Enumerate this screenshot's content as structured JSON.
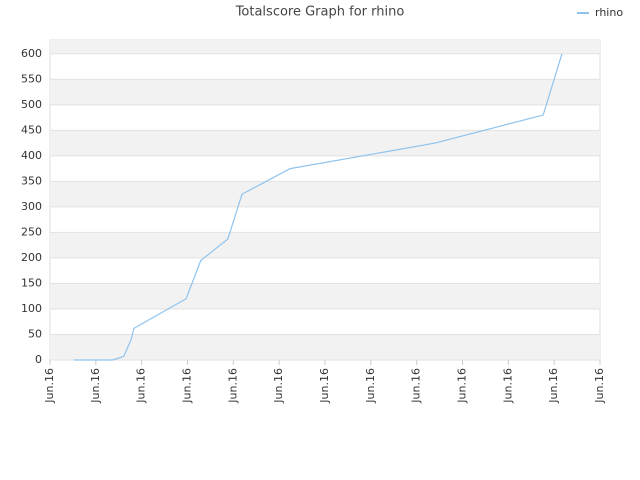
{
  "chart_data": {
    "type": "line",
    "title": "Totalscore Graph for rhino",
    "x": [
      0.52,
      1.37,
      1.61,
      1.77,
      1.83,
      2.97,
      3.29,
      3.88,
      4.19,
      5.24,
      8.4,
      10.76,
      11.17
    ],
    "series": [
      {
        "name": "rhino",
        "color": "#8ec3ee",
        "values": [
          0,
          0,
          7,
          40,
          62,
          120,
          195,
          237,
          325,
          375,
          425,
          480,
          600
        ]
      }
    ],
    "xlim": [
      0,
      12
    ],
    "xticks": [
      {
        "value": 0,
        "label": "Jun.16"
      },
      {
        "value": 1,
        "label": "Jun.16"
      },
      {
        "value": 2,
        "label": "Jun.16"
      },
      {
        "value": 3,
        "label": "Jun.16"
      },
      {
        "value": 4,
        "label": "Jun.16"
      },
      {
        "value": 5,
        "label": "Jun.16"
      },
      {
        "value": 6,
        "label": "Jun.16"
      },
      {
        "value": 7,
        "label": "Jun.16"
      },
      {
        "value": 8,
        "label": "Jun.16"
      },
      {
        "value": 9,
        "label": "Jun.16"
      },
      {
        "value": 10,
        "label": "Jun.16"
      },
      {
        "value": 11,
        "label": "Jun.16"
      },
      {
        "value": 12,
        "label": "Jun.16"
      }
    ],
    "ylim": [
      0,
      627
    ],
    "yticks": [
      0,
      50,
      100,
      150,
      200,
      250,
      300,
      350,
      400,
      450,
      500,
      550,
      600
    ],
    "grid": true,
    "legend": "top-right"
  }
}
